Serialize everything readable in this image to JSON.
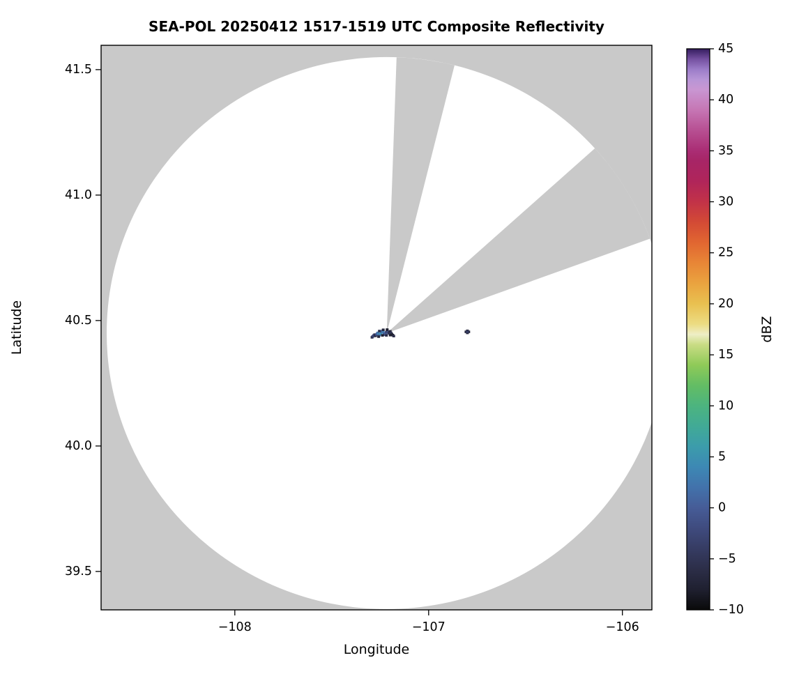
{
  "chart_data": {
    "type": "radar_ppi_composite",
    "title": "SEA-POL 20250412 1517-1519 UTC Composite Reflectivity",
    "xlabel": "Longitude",
    "ylabel": "Latitude",
    "xlim": [
      -108.69,
      -105.848
    ],
    "ylim": [
      39.347,
      41.597
    ],
    "xticks": [
      -108,
      -107,
      -106
    ],
    "xtick_labels": [
      "−108",
      "−107",
      "−106"
    ],
    "yticks": [
      41.5,
      41.0,
      40.5,
      40.0,
      39.5
    ],
    "ytick_labels": [
      "41.5",
      "41.0",
      "40.5",
      "40.0",
      "39.5"
    ],
    "grid": false,
    "legend": false,
    "colors": {
      "background": "#ffffff",
      "no_data": "#c9c9c9",
      "coverage": "#ffffff",
      "axis": "#000000"
    },
    "radar": {
      "lon": -107.216,
      "lat": 40.45,
      "radius_lon_deg": 1.445,
      "radius_lat_deg": 1.1
    },
    "blocked_sectors_deg": [
      {
        "from_az": 2,
        "to_az": 14
      },
      {
        "from_az": 48,
        "to_az": 70
      }
    ],
    "colorbar": {
      "label": "dBZ",
      "min": -10,
      "max": 45,
      "ticks": [
        45,
        40,
        35,
        30,
        25,
        20,
        15,
        10,
        5,
        0,
        -5,
        -10
      ],
      "tick_labels": [
        "45",
        "40",
        "35",
        "30",
        "25",
        "20",
        "15",
        "10",
        "5",
        "0",
        "−5",
        "−10"
      ],
      "colormap": [
        [
          -10,
          "#0a0a0a"
        ],
        [
          -8,
          "#1f2030"
        ],
        [
          -6,
          "#2c2e48"
        ],
        [
          -4,
          "#363c63"
        ],
        [
          -2,
          "#3f4b7e"
        ],
        [
          0,
          "#465c97"
        ],
        [
          2,
          "#4272ab"
        ],
        [
          4,
          "#3d88b4"
        ],
        [
          6,
          "#3c9cab"
        ],
        [
          8,
          "#41aa96"
        ],
        [
          10,
          "#4cb47f"
        ],
        [
          12,
          "#63bd64"
        ],
        [
          14,
          "#8fca58"
        ],
        [
          16,
          "#c9dc84"
        ],
        [
          17,
          "#eeeec6"
        ],
        [
          18,
          "#ecdc83"
        ],
        [
          20,
          "#e9c050"
        ],
        [
          22,
          "#eaa33f"
        ],
        [
          24,
          "#e88636"
        ],
        [
          26,
          "#e16631"
        ],
        [
          28,
          "#d34a35"
        ],
        [
          30,
          "#c23248"
        ],
        [
          32,
          "#b0255a"
        ],
        [
          34,
          "#a72566"
        ],
        [
          35,
          "#aa2d74"
        ],
        [
          37,
          "#b74f92"
        ],
        [
          39,
          "#c676b4"
        ],
        [
          41,
          "#c996d2"
        ],
        [
          42,
          "#b795d6"
        ],
        [
          43,
          "#9b7cc8"
        ],
        [
          44,
          "#7450a0"
        ],
        [
          45,
          "#341c5e"
        ]
      ]
    },
    "echoes": [
      [
        -107.292,
        40.433,
        -6
      ],
      [
        -107.288,
        40.437,
        -4
      ],
      [
        -107.283,
        40.441,
        -2
      ],
      [
        -107.278,
        40.444,
        -5
      ],
      [
        -107.274,
        40.439,
        -7
      ],
      [
        -107.27,
        40.443,
        -3
      ],
      [
        -107.266,
        40.447,
        0
      ],
      [
        -107.262,
        40.451,
        2
      ],
      [
        -107.258,
        40.446,
        4
      ],
      [
        -107.254,
        40.442,
        1
      ],
      [
        -107.25,
        40.446,
        3
      ],
      [
        -107.246,
        40.451,
        5
      ],
      [
        -107.242,
        40.455,
        2
      ],
      [
        -107.238,
        40.459,
        -1
      ],
      [
        -107.234,
        40.454,
        3
      ],
      [
        -107.23,
        40.449,
        1
      ],
      [
        -107.226,
        40.444,
        -2
      ],
      [
        -107.222,
        40.449,
        0
      ],
      [
        -107.218,
        40.454,
        -3
      ],
      [
        -107.214,
        40.459,
        -5
      ],
      [
        -107.21,
        40.454,
        -1
      ],
      [
        -107.206,
        40.449,
        -4
      ],
      [
        -107.202,
        40.453,
        -6
      ],
      [
        -107.198,
        40.457,
        -7
      ],
      [
        -107.194,
        40.451,
        -5
      ],
      [
        -107.19,
        40.446,
        -7
      ],
      [
        -107.185,
        40.442,
        -8
      ],
      [
        -107.18,
        40.438,
        -6
      ],
      [
        -107.258,
        40.436,
        -7
      ],
      [
        -107.238,
        40.441,
        -8
      ],
      [
        -107.218,
        40.441,
        -6
      ],
      [
        -107.198,
        40.442,
        -8
      ],
      [
        -107.234,
        40.463,
        -7
      ],
      [
        -107.214,
        40.464,
        -8
      ],
      [
        -107.254,
        40.458,
        -6
      ],
      [
        -106.807,
        40.455,
        -7
      ],
      [
        -106.793,
        40.455,
        -7
      ],
      [
        -106.8,
        40.459,
        -7
      ],
      [
        -106.8,
        40.451,
        -7
      ],
      [
        -106.8,
        40.455,
        -4
      ]
    ]
  }
}
